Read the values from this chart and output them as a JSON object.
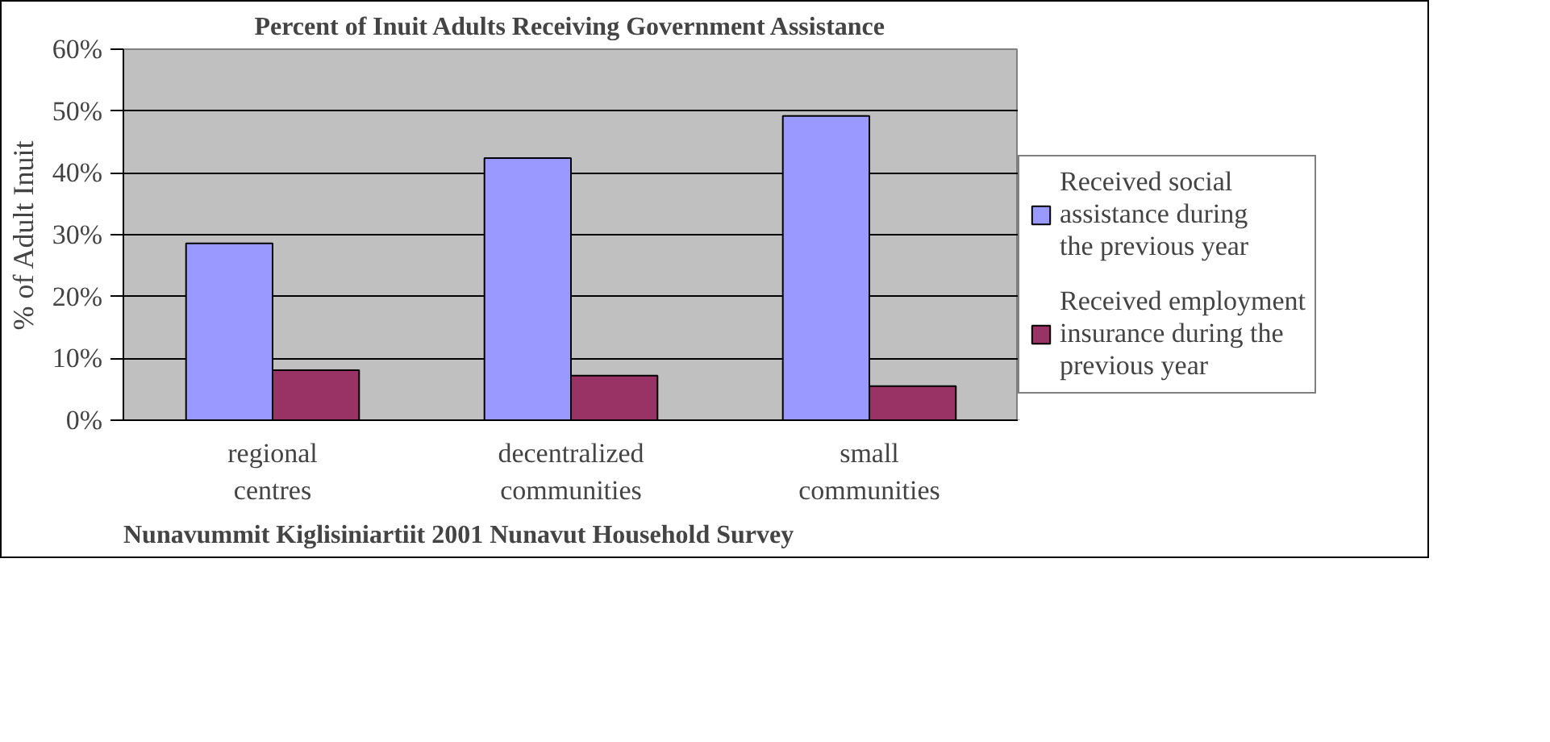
{
  "chart_data": {
    "type": "bar",
    "title": "Percent of Inuit Adults Receiving Government Assistance",
    "ylabel": "% of Adult Inuit",
    "categories": [
      "regional centres",
      "decentralized communities",
      "small communities"
    ],
    "series": [
      {
        "name": "Received social assistance during the previous year",
        "color": "#9999ff",
        "values": [
          28.6,
          42.4,
          49.2
        ]
      },
      {
        "name": "Received employment insurance during the previous year",
        "color": "#993366",
        "values": [
          8.1,
          7.2,
          5.5
        ]
      }
    ],
    "ylim": [
      0,
      60
    ],
    "yticks": [
      {
        "value": 0,
        "label": "0%"
      },
      {
        "value": 10,
        "label": "10%"
      },
      {
        "value": 20,
        "label": "20%"
      },
      {
        "value": 30,
        "label": "30%"
      },
      {
        "value": 40,
        "label": "40%"
      },
      {
        "value": 50,
        "label": "50%"
      },
      {
        "value": 60,
        "label": "60%"
      }
    ],
    "grid": "y",
    "legend": "right",
    "annotations": [
      "Nunavummit Kiglisiniartiit 2001 Nunavut Household Survey"
    ]
  }
}
